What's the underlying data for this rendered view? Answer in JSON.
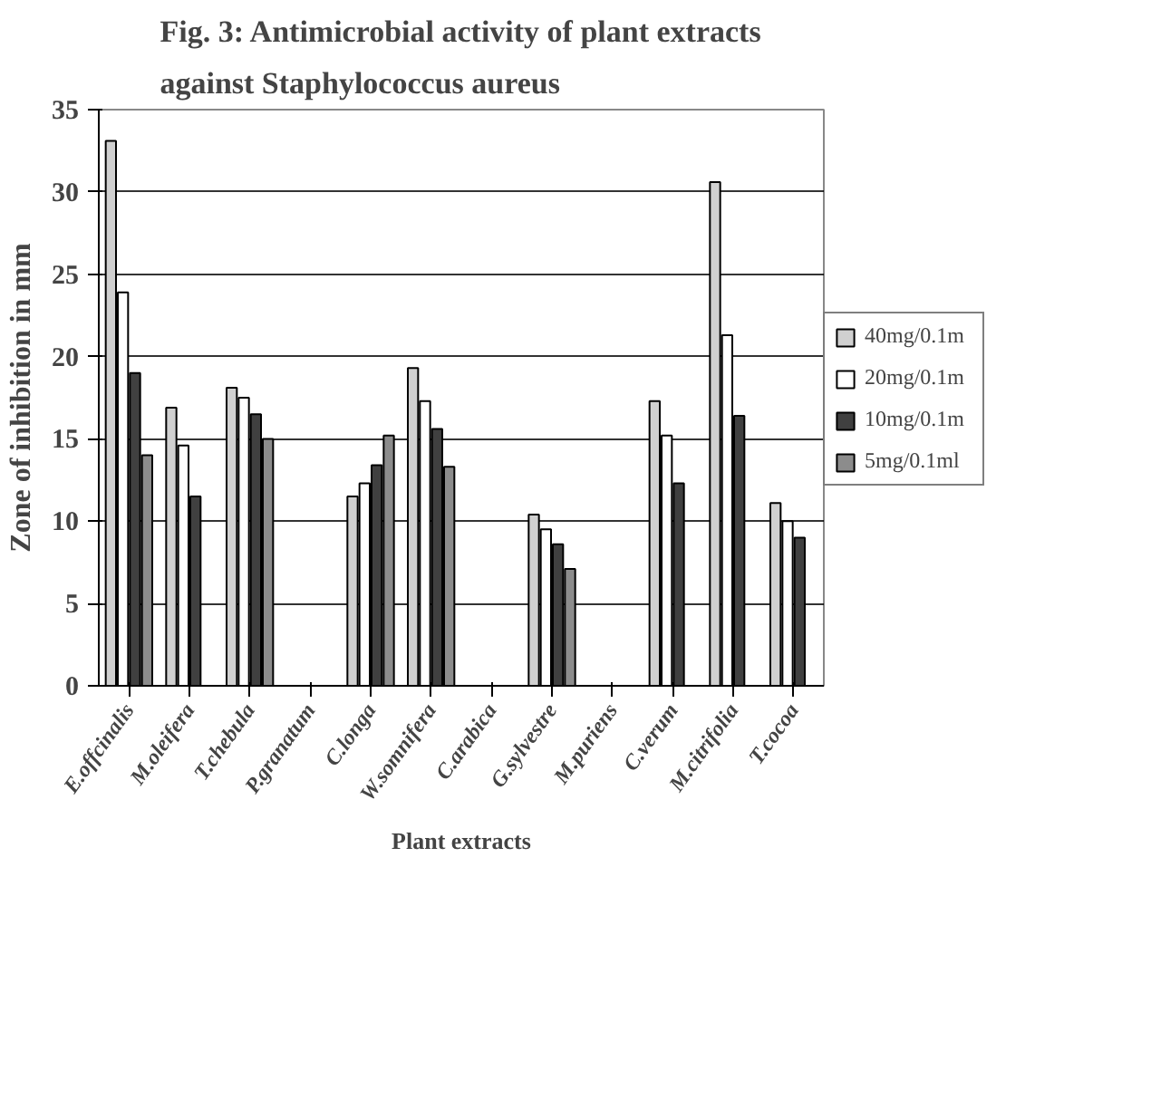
{
  "chart_data": {
    "type": "bar",
    "title": "Fig. 3: Antimicrobial activity of plant extracts\nagainst Staphylococcus aureus",
    "xlabel": "Plant extracts",
    "ylabel": "Zone of inhibition in mm",
    "categories": [
      "E.offcinalis",
      "M.oleifera",
      "T.chebula",
      "P.granatum",
      "C.longa",
      "W.somnifera",
      "C.arabica",
      "G.sylvestre",
      "M.puriens",
      "C.verum",
      "M.citrifolia",
      "T.cocoa"
    ],
    "series": [
      {
        "name": "40mg/0.1m",
        "color": "#d0d0d0",
        "values": [
          33.1,
          16.9,
          18.1,
          null,
          11.5,
          19.3,
          null,
          10.4,
          null,
          17.3,
          30.6,
          11.1
        ]
      },
      {
        "name": "20mg/0.1m",
        "color": "#ffffff",
        "values": [
          23.9,
          14.6,
          17.5,
          null,
          12.3,
          17.3,
          null,
          9.5,
          null,
          15.2,
          21.3,
          10.0
        ]
      },
      {
        "name": "10mg/0.1m",
        "color": "#404040",
        "values": [
          19.0,
          11.5,
          16.5,
          null,
          13.4,
          15.6,
          null,
          8.6,
          null,
          12.3,
          16.4,
          9.0
        ]
      },
      {
        "name": "5mg/0.1ml",
        "color": "#8c8c8c",
        "values": [
          14.0,
          null,
          15.0,
          null,
          15.2,
          13.3,
          null,
          7.1,
          null,
          null,
          null,
          null
        ]
      }
    ],
    "ylim": [
      0,
      35
    ],
    "yticks": [
      0,
      5,
      10,
      15,
      20,
      25,
      30,
      35
    ],
    "grid": "y",
    "legend": "right"
  }
}
